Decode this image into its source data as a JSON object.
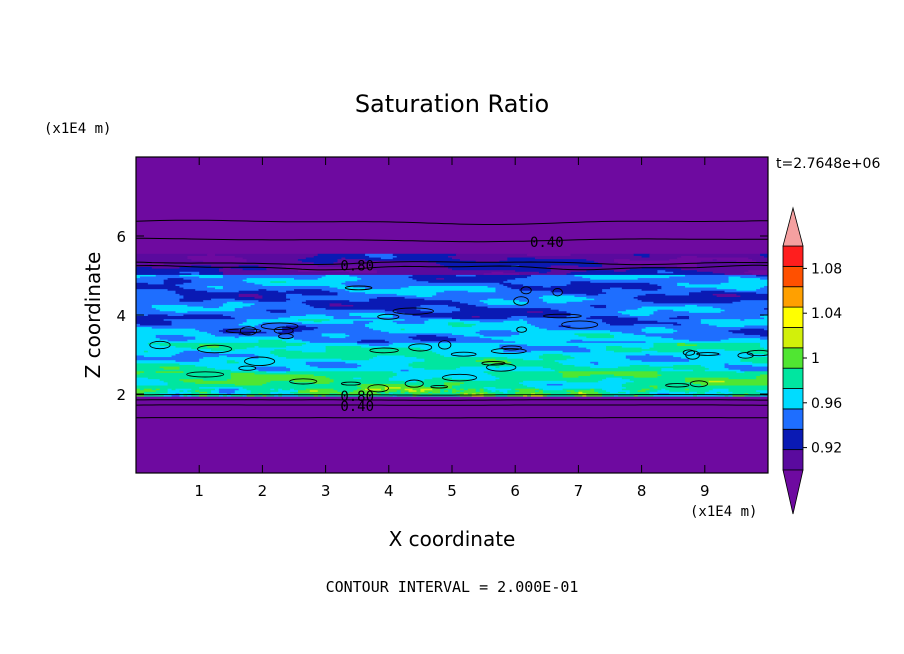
{
  "chart_data": {
    "type": "heatmap",
    "title": "Saturation Ratio",
    "xlabel": "X coordinate",
    "ylabel": "Z coordinate",
    "x_unit": "(x1E4 m)",
    "y_unit": "(x1E4 m)",
    "time_label": "t=2.7648e+06",
    "footer": "CONTOUR INTERVAL = 2.000E-01",
    "xlim": [
      0,
      10
    ],
    "ylim": [
      0,
      8
    ],
    "x_ticks": [
      1,
      2,
      3,
      4,
      5,
      6,
      7,
      8,
      9
    ],
    "y_ticks": [
      2,
      4,
      6
    ],
    "colorbar": {
      "levels": [
        0.9,
        0.92,
        0.94,
        0.96,
        0.98,
        1.0,
        1.02,
        1.04,
        1.06,
        1.08,
        1.1
      ],
      "tick_labels": [
        "0.92",
        "0.96",
        "1",
        "1.04",
        "1.08"
      ],
      "tick_values": [
        0.92,
        0.96,
        1.0,
        1.04,
        1.08
      ],
      "colors": [
        "#5a0a9e",
        "#0a1ab4",
        "#1e6eff",
        "#00dcff",
        "#00e6a0",
        "#50e632",
        "#d2f00a",
        "#ffff00",
        "#ffa000",
        "#ff5000",
        "#ff1e1e"
      ],
      "under_color": "#6e0aa0",
      "over_color": "#f5a0a0"
    },
    "contour_labels": [
      {
        "text": "0.40",
        "x": 6.5,
        "z": 5.85
      },
      {
        "text": "0.80",
        "x": 3.5,
        "z": 5.25
      },
      {
        "text": "0.80",
        "x": 3.5,
        "z": 1.95
      },
      {
        "text": "0.40",
        "x": 3.5,
        "z": 1.7
      }
    ]
  }
}
